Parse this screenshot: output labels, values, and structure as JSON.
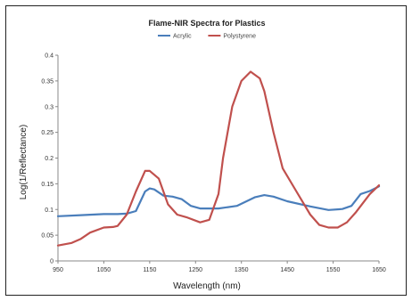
{
  "chart_data": {
    "type": "line",
    "title": "Flame-NIR Spectra for Plastics",
    "xlabel": "Wavelength (nm)",
    "ylabel": "Log(1/Reflectance)",
    "xlim": [
      950,
      1650
    ],
    "ylim": [
      0,
      0.4
    ],
    "xticks": [
      950,
      1050,
      1150,
      1250,
      1350,
      1450,
      1550,
      1650
    ],
    "xtick_labels": [
      "950",
      "1050",
      "1150",
      "1250",
      "1350",
      "1450",
      "1550",
      "1650"
    ],
    "yticks": [
      0,
      0.05,
      0.1,
      0.15,
      0.2,
      0.25,
      0.3,
      0.35,
      0.4
    ],
    "ytick_labels": [
      "0",
      "0.05",
      "0.1",
      "0.15",
      "0.2",
      "0.25",
      "0.3",
      "0.35",
      "0.4"
    ],
    "grid": false,
    "legend_position": "top-center",
    "series": [
      {
        "name": "Acrylic",
        "color": "#4a7ebb",
        "x": [
          950,
          1000,
          1050,
          1080,
          1100,
          1120,
          1140,
          1150,
          1160,
          1180,
          1200,
          1220,
          1240,
          1260,
          1300,
          1340,
          1380,
          1400,
          1420,
          1450,
          1500,
          1540,
          1570,
          1590,
          1610,
          1630,
          1650
        ],
        "y": [
          0.087,
          0.089,
          0.091,
          0.091,
          0.092,
          0.097,
          0.135,
          0.141,
          0.139,
          0.127,
          0.125,
          0.12,
          0.107,
          0.102,
          0.102,
          0.107,
          0.124,
          0.128,
          0.125,
          0.116,
          0.106,
          0.099,
          0.101,
          0.107,
          0.13,
          0.136,
          0.145
        ]
      },
      {
        "name": "Polystyrene",
        "color": "#c0504d",
        "x": [
          950,
          980,
          1000,
          1020,
          1050,
          1070,
          1080,
          1100,
          1120,
          1140,
          1150,
          1170,
          1190,
          1210,
          1230,
          1260,
          1280,
          1300,
          1310,
          1330,
          1350,
          1370,
          1390,
          1400,
          1420,
          1440,
          1470,
          1500,
          1520,
          1540,
          1560,
          1580,
          1600,
          1630,
          1650
        ],
        "y": [
          0.03,
          0.035,
          0.043,
          0.055,
          0.065,
          0.066,
          0.068,
          0.09,
          0.135,
          0.175,
          0.175,
          0.16,
          0.11,
          0.09,
          0.085,
          0.075,
          0.08,
          0.13,
          0.2,
          0.3,
          0.35,
          0.368,
          0.355,
          0.33,
          0.25,
          0.18,
          0.135,
          0.09,
          0.07,
          0.065,
          0.065,
          0.075,
          0.095,
          0.13,
          0.147
        ]
      }
    ]
  }
}
